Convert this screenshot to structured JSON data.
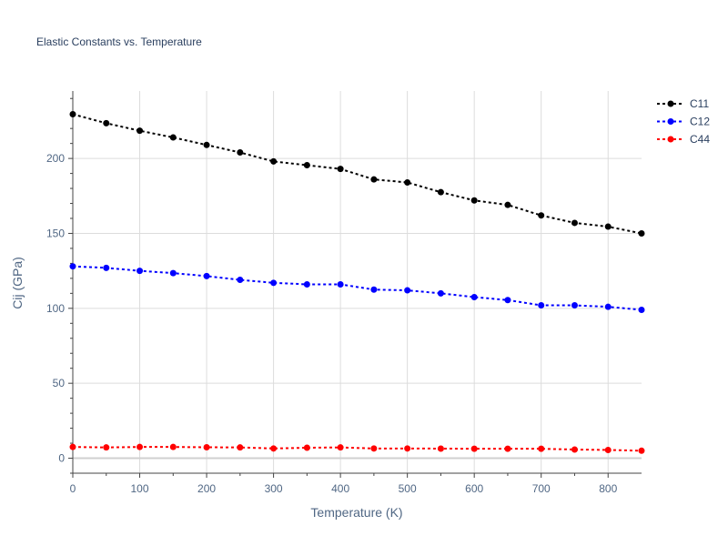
{
  "chart_data": {
    "type": "line",
    "title": "Elastic Constants vs. Temperature",
    "xlabel": "Temperature (K)",
    "ylabel": "Cij (GPa)",
    "xlim": [
      0,
      850
    ],
    "ylim": [
      -10,
      245
    ],
    "xticks": [
      0,
      100,
      200,
      300,
      400,
      500,
      600,
      700,
      800
    ],
    "yticks": [
      0,
      50,
      100,
      150,
      200
    ],
    "grid": true,
    "legend_position": "top-right",
    "x": [
      0,
      50,
      100,
      150,
      200,
      250,
      300,
      350,
      400,
      450,
      500,
      550,
      600,
      650,
      700,
      750,
      800,
      850
    ],
    "series": [
      {
        "name": "C11",
        "color": "#000000",
        "values": [
          229.5,
          223.5,
          218.5,
          214,
          209,
          204,
          198,
          195.5,
          193,
          186,
          184,
          177.5,
          172,
          169,
          162,
          157,
          154.5,
          150
        ]
      },
      {
        "name": "C12",
        "color": "#0000ff",
        "values": [
          128,
          127,
          125,
          123.5,
          121.5,
          119,
          117,
          116,
          116,
          112.5,
          112,
          110,
          107.5,
          105.5,
          102,
          102,
          101,
          99
        ]
      },
      {
        "name": "C44",
        "color": "#ff0000",
        "values": [
          7.5,
          7.2,
          7.5,
          7.5,
          7.3,
          7.2,
          6.5,
          7,
          7.2,
          6.5,
          6.5,
          6.4,
          6.3,
          6.3,
          6.3,
          5.8,
          5.5,
          5
        ]
      }
    ]
  }
}
